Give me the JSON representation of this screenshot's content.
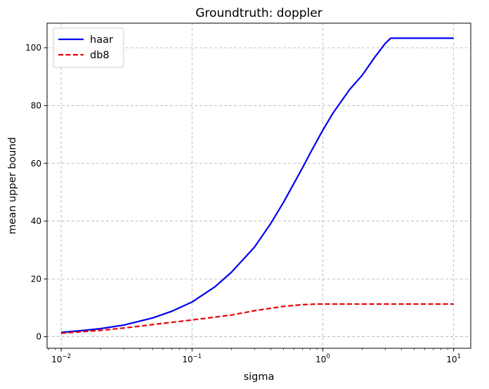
{
  "chart_data": {
    "type": "line",
    "title": "Groundtruth: doppler",
    "xlabel": "sigma",
    "ylabel": "mean upper bound",
    "xscale": "log",
    "xlim": [
      0.0078,
      13.5
    ],
    "ylim": [
      -4,
      108.5
    ],
    "xticks": [
      0.01,
      0.1,
      1,
      10
    ],
    "xtick_labels": [
      {
        "base": "10",
        "exp": "−2"
      },
      {
        "base": "10",
        "exp": "−1"
      },
      {
        "base": "10",
        "exp": "0"
      },
      {
        "base": "10",
        "exp": "1"
      }
    ],
    "yticks": [
      0,
      20,
      40,
      60,
      80,
      100
    ],
    "ytick_labels": [
      "0",
      "20",
      "40",
      "60",
      "80",
      "100"
    ],
    "grid": true,
    "legend_position": "top-left",
    "series": [
      {
        "name": "haar",
        "color": "#0000ee",
        "style": "solid",
        "x": [
          0.01,
          0.015,
          0.02,
          0.03,
          0.05,
          0.07,
          0.1,
          0.15,
          0.2,
          0.3,
          0.4,
          0.5,
          0.6,
          0.7,
          0.8,
          1.0,
          1.2,
          1.6,
          2.0,
          2.5,
          3.0,
          3.3,
          4.0,
          6.0,
          10.0
        ],
        "y": [
          1.5,
          2.2,
          2.8,
          4.0,
          6.5,
          8.8,
          12.0,
          17.3,
          22.3,
          31.0,
          39.2,
          46.5,
          53.0,
          58.5,
          63.5,
          71.5,
          77.5,
          85.5,
          90.5,
          96.8,
          101.5,
          103.3,
          103.3,
          103.3,
          103.3
        ]
      },
      {
        "name": "db8",
        "color": "#ee0000",
        "style": "dashed",
        "x": [
          0.01,
          0.02,
          0.03,
          0.05,
          0.1,
          0.2,
          0.3,
          0.5,
          0.7,
          0.9,
          1.0,
          2.0,
          5.0,
          10.0
        ],
        "y": [
          1.2,
          2.2,
          3.0,
          4.2,
          5.8,
          7.5,
          9.0,
          10.5,
          11.1,
          11.3,
          11.3,
          11.3,
          11.3,
          11.3
        ]
      }
    ]
  }
}
